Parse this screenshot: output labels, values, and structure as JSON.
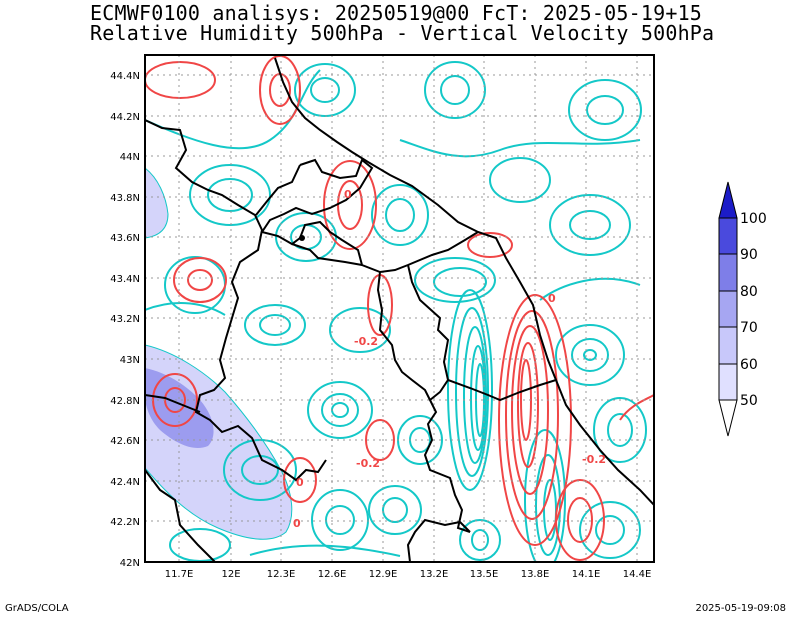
{
  "title_line1": "ECMWF0100 analisys: 20250519@00 FcT: 2025-05-19+15",
  "title_line2": "Relative Humidity 500hPa - Vertical Velocity 500hPa",
  "footer_left": "GrADS/COLA",
  "footer_right": "2025-05-19-09:08",
  "lat_labels": [
    "44.4N",
    "44.2N",
    "44N",
    "43.8N",
    "43.6N",
    "43.4N",
    "43.2N",
    "43N",
    "42.8N",
    "42.6N",
    "42.4N",
    "42.2N",
    "42N"
  ],
  "lon_labels": [
    "11.7E",
    "12E",
    "12.3E",
    "12.6E",
    "12.9E",
    "13.2E",
    "13.5E",
    "13.8E",
    "14.1E",
    "14.4E"
  ],
  "contour_labels": [
    "-0.2",
    "-0.2",
    "0",
    "0",
    "-0.2",
    "0",
    "0"
  ],
  "colorbar": {
    "labels": [
      "50",
      "60",
      "70",
      "80",
      "90",
      "100"
    ],
    "colors": [
      "#e0e0ff",
      "#c8c8fa",
      "#a6a6f2",
      "#7e7ee8",
      "#4a4add",
      "#1c1cc8"
    ]
  },
  "colors": {
    "humidity_fill": "#d4d4fa",
    "humidity_fill_dark": "#9c9cef",
    "velocity_negative": "#14c8c8",
    "velocity_positive": "#f04646",
    "border": "#000000",
    "grid": "#999999"
  }
}
